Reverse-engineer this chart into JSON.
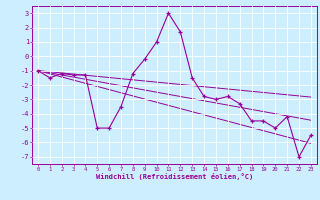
{
  "xlabel": "Windchill (Refroidissement éolien,°C)",
  "background_color": "#cceeff",
  "grid_color": "#ffffff",
  "line_color": "#990099",
  "xlim": [
    -0.5,
    23.5
  ],
  "ylim": [
    -7.5,
    3.5
  ],
  "yticks": [
    -7,
    -6,
    -5,
    -4,
    -3,
    -2,
    -1,
    0,
    1,
    2,
    3
  ],
  "xticks": [
    0,
    1,
    2,
    3,
    4,
    5,
    6,
    7,
    8,
    9,
    10,
    11,
    12,
    13,
    14,
    15,
    16,
    17,
    18,
    19,
    20,
    21,
    22,
    23
  ],
  "x_data": [
    0,
    1,
    2,
    3,
    4,
    5,
    6,
    7,
    8,
    9,
    10,
    11,
    12,
    13,
    14,
    15,
    16,
    17,
    18,
    19,
    20,
    21,
    22,
    23
  ],
  "y_main": [
    -1.0,
    -1.5,
    -1.2,
    -1.3,
    -1.3,
    -5.0,
    -5.0,
    -3.5,
    -1.2,
    -0.2,
    1.0,
    3.0,
    1.7,
    -1.5,
    -2.8,
    -3.0,
    -2.8,
    -3.3,
    -4.5,
    -4.5,
    -5.0,
    -4.2,
    -7.0,
    -5.5
  ],
  "y_trend1": [
    -1.0,
    -1.22,
    -1.44,
    -1.66,
    -1.88,
    -2.1,
    -2.32,
    -2.54,
    -2.76,
    -2.98,
    -3.2,
    -3.42,
    -3.64,
    -3.86,
    -4.08,
    -4.3,
    -4.52,
    -4.74,
    -4.96,
    -5.18,
    -5.4,
    -5.62,
    -5.84,
    -6.06
  ],
  "y_trend2": [
    -1.0,
    -1.15,
    -1.3,
    -1.45,
    -1.6,
    -1.75,
    -1.9,
    -2.05,
    -2.2,
    -2.35,
    -2.5,
    -2.65,
    -2.8,
    -2.95,
    -3.1,
    -3.25,
    -3.4,
    -3.55,
    -3.7,
    -3.85,
    -4.0,
    -4.15,
    -4.3,
    -4.45
  ],
  "y_trend3": [
    -1.0,
    -1.08,
    -1.16,
    -1.24,
    -1.32,
    -1.4,
    -1.48,
    -1.56,
    -1.64,
    -1.72,
    -1.8,
    -1.88,
    -1.96,
    -2.04,
    -2.12,
    -2.2,
    -2.28,
    -2.36,
    -2.44,
    -2.52,
    -2.6,
    -2.68,
    -2.76,
    -2.84
  ]
}
